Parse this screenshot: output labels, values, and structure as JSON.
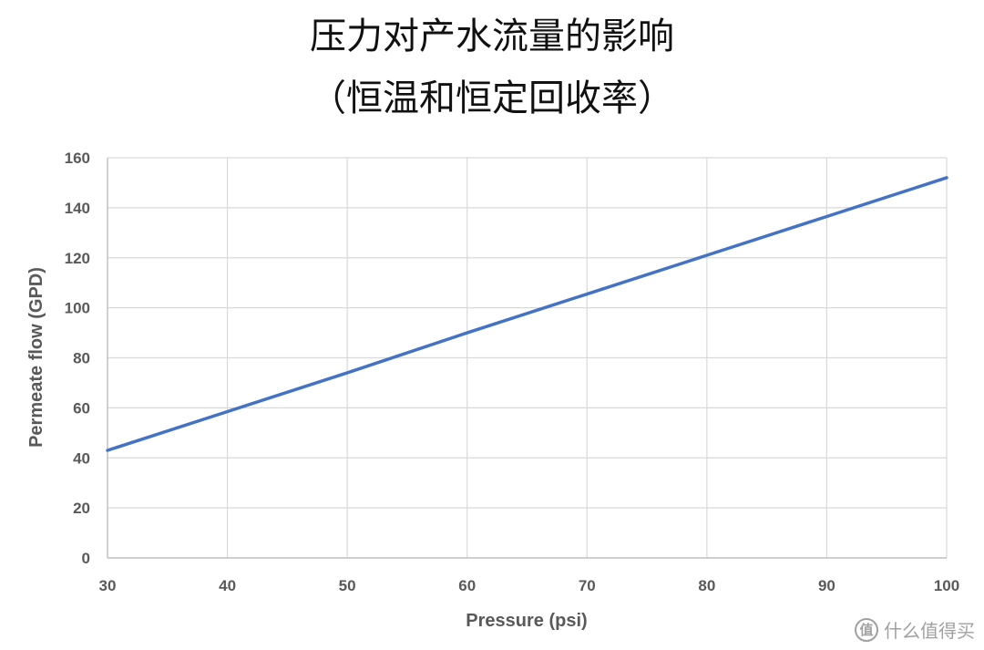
{
  "chart_data": {
    "type": "line",
    "title": "压力对产水流量的影响",
    "subtitle": "（恒温和恒定回收率）",
    "xlabel": "Pressure (psi)",
    "ylabel": "Permeate flow (GPD)",
    "xlim": [
      30,
      100
    ],
    "ylim": [
      0,
      160
    ],
    "xticks": [
      30,
      40,
      50,
      60,
      70,
      80,
      90,
      100
    ],
    "yticks": [
      0,
      20,
      40,
      60,
      80,
      100,
      120,
      140,
      160
    ],
    "grid": true,
    "legend": "none",
    "series": [
      {
        "color": "#4472c4",
        "x": [
          30,
          40,
          50,
          60,
          70,
          80,
          90,
          100
        ],
        "y": [
          43,
          58.5,
          74,
          90,
          105.5,
          121,
          136.5,
          152
        ]
      }
    ]
  },
  "watermark": {
    "icon": "值",
    "text": "什么值得买"
  }
}
